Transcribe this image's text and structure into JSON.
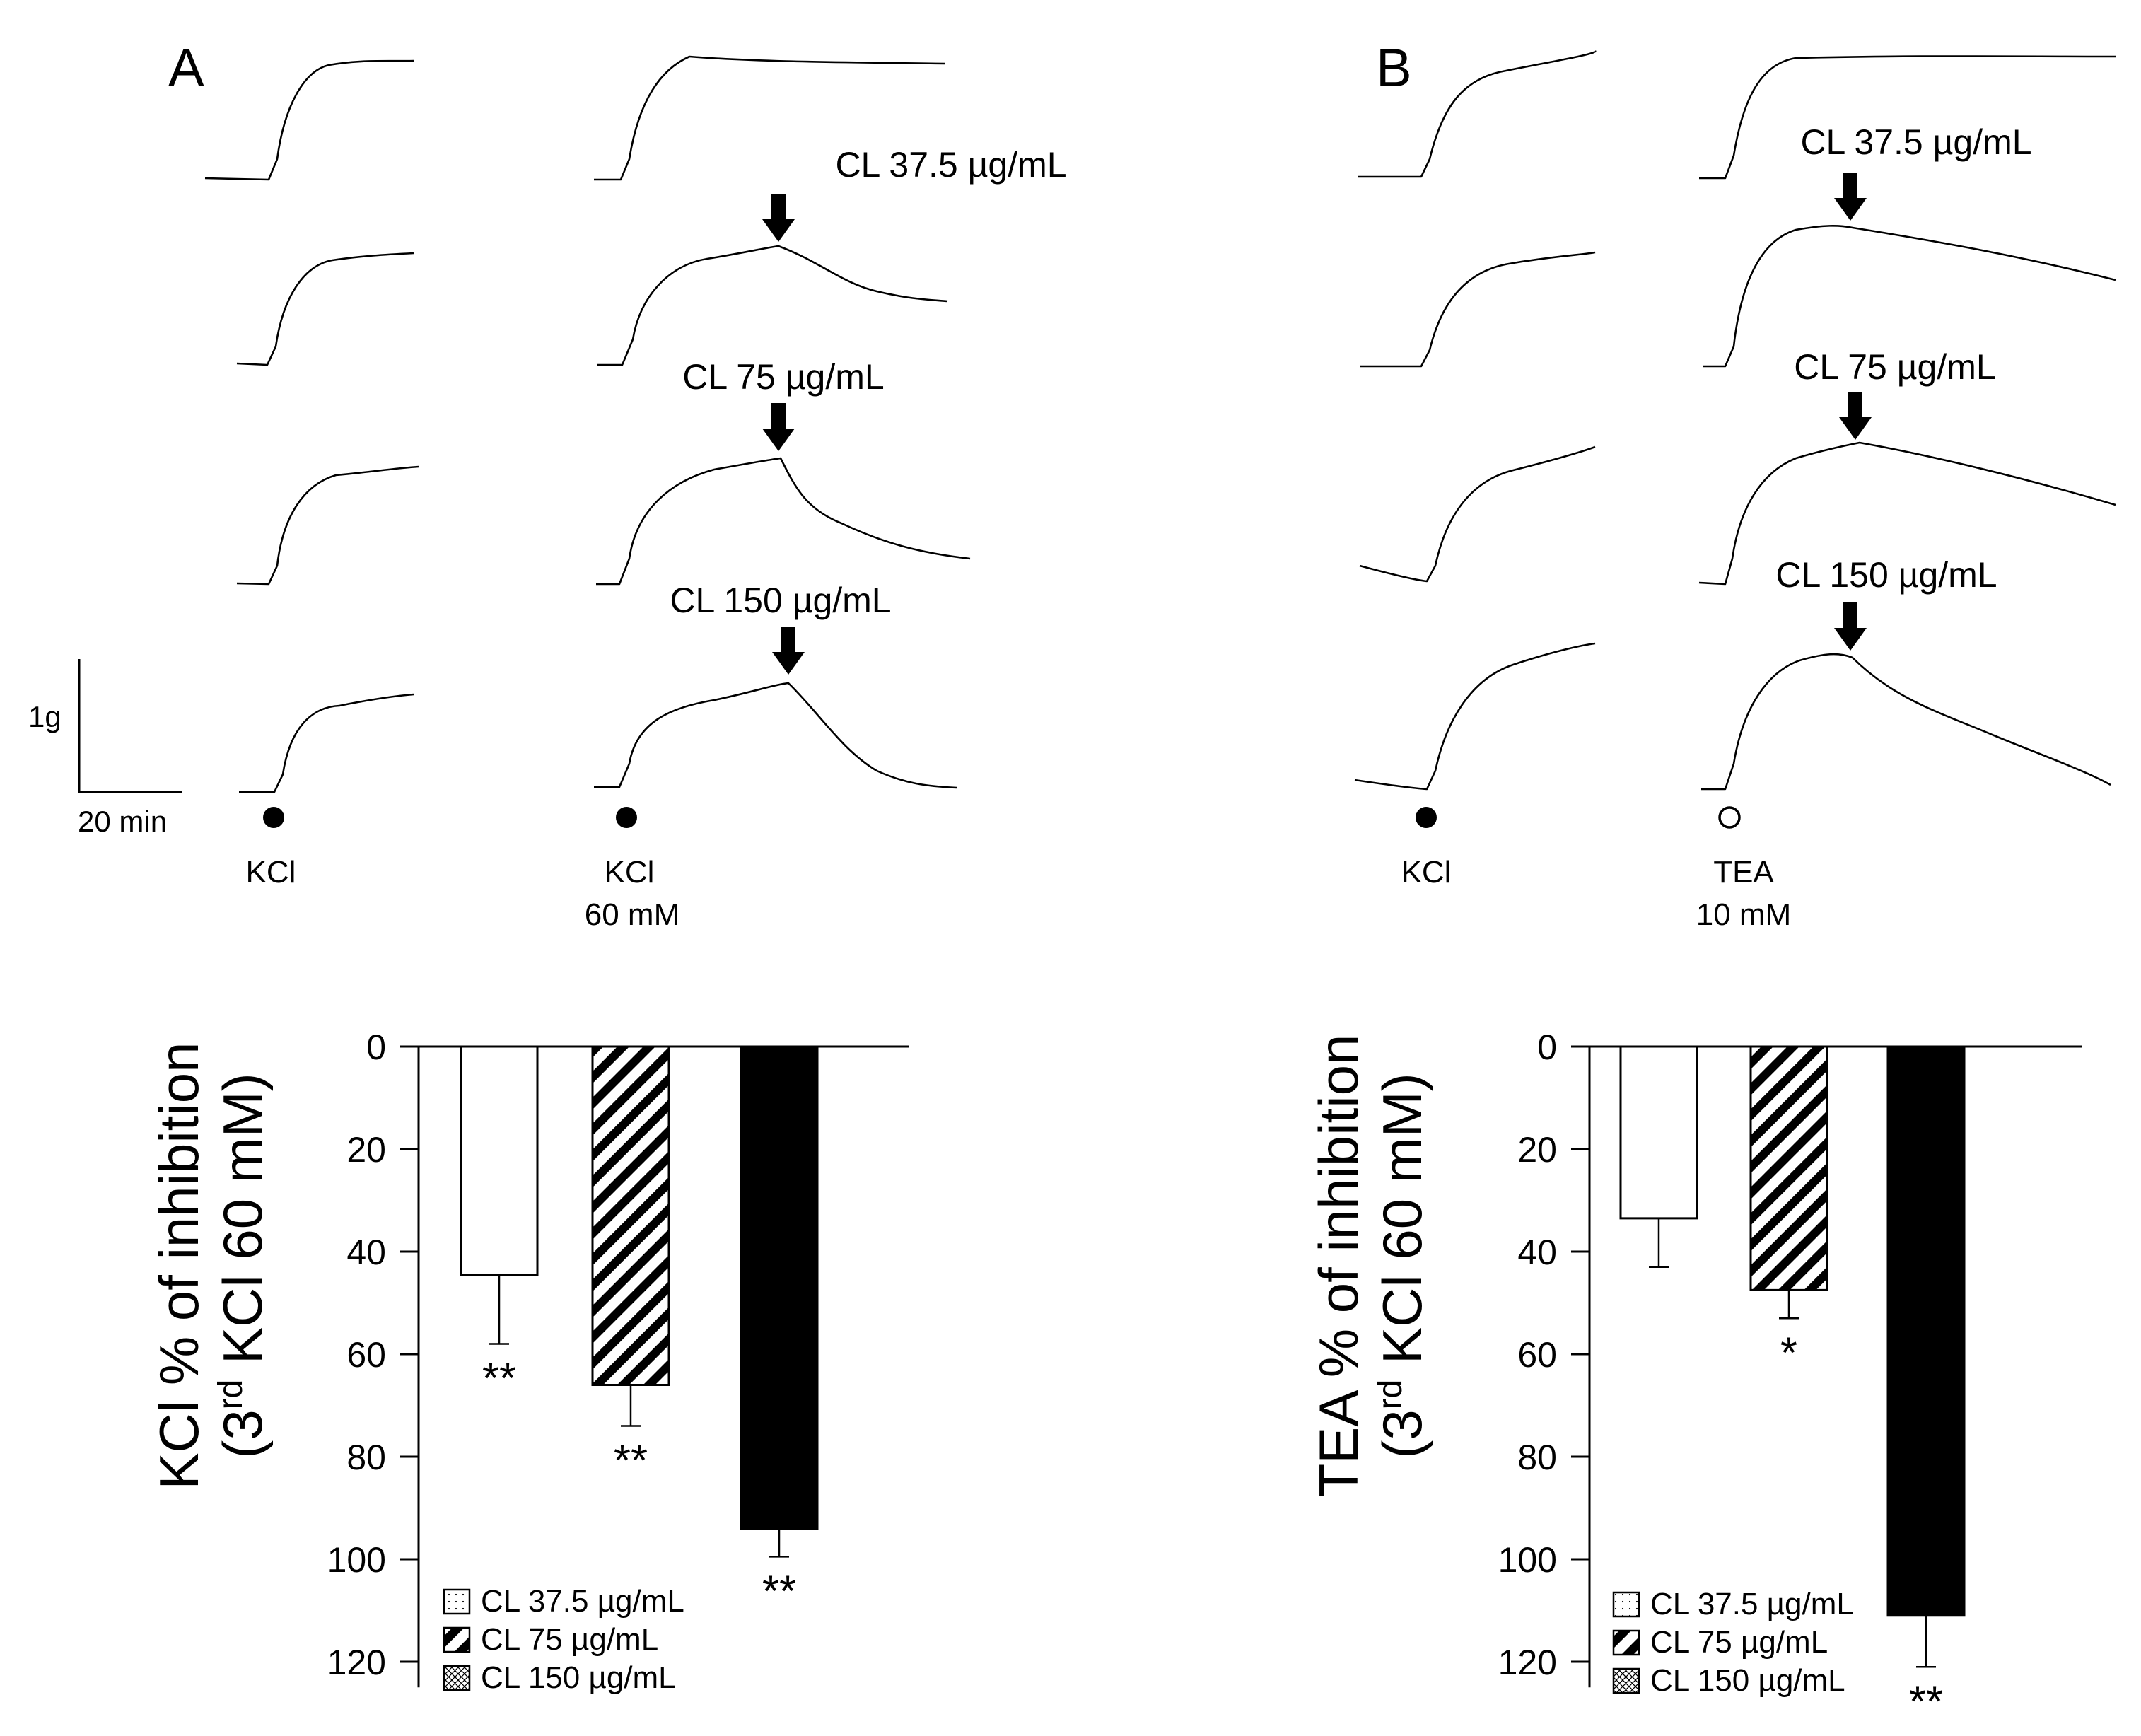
{
  "panels": {
    "A": {
      "label": "A",
      "arrow_labels": [
        "CL 37.5 µg/mL",
        "CL 75 µg/mL",
        "CL 150 µg/mL"
      ],
      "marker1_label": "KCl",
      "marker2_label": "KCl",
      "marker2_conc": "60 mM",
      "scale_y": "1g",
      "scale_x": "20 min"
    },
    "B": {
      "label": "B",
      "arrow_labels": [
        "CL 37.5 µg/mL",
        "CL 75 µg/mL",
        "CL 150 µg/mL"
      ],
      "marker1_label": "KCl",
      "marker2_label": "TEA",
      "marker2_conc": "10 mM"
    }
  },
  "chart_data": [
    {
      "type": "bar",
      "panel": "A",
      "ylabel_line1": "KCl % of inhibition",
      "ylabel_line2_prefix": "(3",
      "ylabel_line2_sup": "rd",
      "ylabel_line2_suffix": " KCl 60 mM)",
      "ylim": [
        0,
        125
      ],
      "yticks": [
        0,
        20,
        40,
        60,
        80,
        100,
        120
      ],
      "y_inverted": true,
      "categories": [
        "CL 37.5 µg/mL",
        "CL 75 µg/mL",
        "CL 150 µg/mL"
      ],
      "values": [
        44.5,
        66,
        94
      ],
      "errors": [
        13.5,
        8,
        5.5
      ],
      "significance": [
        "**",
        "**",
        "**"
      ],
      "legend": [
        "CL 37.5 µg/mL",
        "CL 75 µg/mL",
        "CL 150 µg/mL"
      ],
      "legend_position": "bottom-left",
      "colors": [
        "#ffffff",
        "hatched",
        "#000000"
      ]
    },
    {
      "type": "bar",
      "panel": "B",
      "ylabel_line1": "TEA % of inhibition",
      "ylabel_line2_prefix": "(3",
      "ylabel_line2_sup": "rd",
      "ylabel_line2_suffix": " KCl 60 mM)",
      "ylim": [
        0,
        125
      ],
      "yticks": [
        0,
        20,
        40,
        60,
        80,
        100,
        120
      ],
      "y_inverted": true,
      "categories": [
        "CL 37.5 µg/mL",
        "CL 75 µg/mL",
        "CL 150 µg/mL"
      ],
      "values": [
        33.5,
        47.5,
        111
      ],
      "errors": [
        9.5,
        5.5,
        10
      ],
      "significance": [
        "",
        "*",
        "**"
      ],
      "legend": [
        "CL 37.5 µg/mL",
        "CL 75 µg/mL",
        "CL 150 µg/mL"
      ],
      "legend_position": "bottom-left",
      "colors": [
        "#ffffff",
        "hatched",
        "#000000"
      ]
    }
  ]
}
